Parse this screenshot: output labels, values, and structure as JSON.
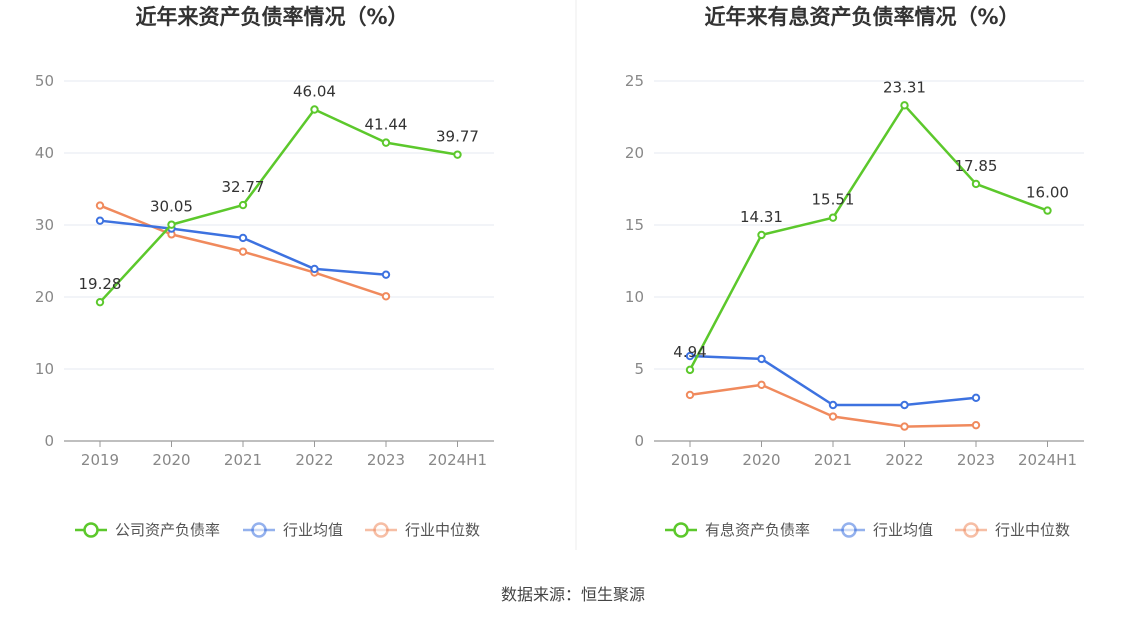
{
  "source": "数据来源：恒生聚源",
  "chart_data": [
    {
      "type": "line",
      "title": "近年来资产负债率情况（%）",
      "categories": [
        "2019",
        "2020",
        "2021",
        "2022",
        "2023",
        "2024H1"
      ],
      "ylim": [
        0,
        50
      ],
      "yticks": [
        "0",
        "10",
        "20",
        "30",
        "40",
        "50"
      ],
      "grid": true,
      "legend_position": "bottom",
      "series": [
        {
          "name": "公司资产负债率",
          "color": "#5cc82c",
          "labeled": true,
          "values": [
            19.28,
            30.05,
            32.77,
            46.04,
            41.44,
            39.77
          ],
          "labels": [
            "19.28",
            "30.05",
            "32.77",
            "46.04",
            "41.44",
            "39.77"
          ]
        },
        {
          "name": "行业均值",
          "color": "#3d72e0",
          "labeled": false,
          "values": [
            30.6,
            29.5,
            28.2,
            23.9,
            23.1,
            null
          ]
        },
        {
          "name": "行业中位数",
          "color": "#f08a5d",
          "labeled": false,
          "values": [
            32.7,
            28.7,
            26.3,
            23.4,
            20.1,
            null
          ]
        }
      ]
    },
    {
      "type": "line",
      "title": "近年来有息资产负债率情况（%）",
      "categories": [
        "2019",
        "2020",
        "2021",
        "2022",
        "2023",
        "2024H1"
      ],
      "ylim": [
        0,
        25
      ],
      "yticks": [
        "0",
        "5",
        "10",
        "15",
        "20",
        "25"
      ],
      "grid": true,
      "legend_position": "bottom",
      "series": [
        {
          "name": "有息资产负债率",
          "color": "#5cc82c",
          "labeled": true,
          "values": [
            4.94,
            14.31,
            15.51,
            23.31,
            17.85,
            16.0
          ],
          "labels": [
            "4.94",
            "14.31",
            "15.51",
            "23.31",
            "17.85",
            "16.00"
          ]
        },
        {
          "name": "行业均值",
          "color": "#3d72e0",
          "labeled": false,
          "values": [
            5.9,
            5.7,
            2.5,
            2.5,
            3.0,
            null
          ]
        },
        {
          "name": "行业中位数",
          "color": "#f08a5d",
          "labeled": false,
          "values": [
            3.2,
            3.9,
            1.7,
            1.0,
            1.1,
            null
          ]
        }
      ]
    }
  ]
}
